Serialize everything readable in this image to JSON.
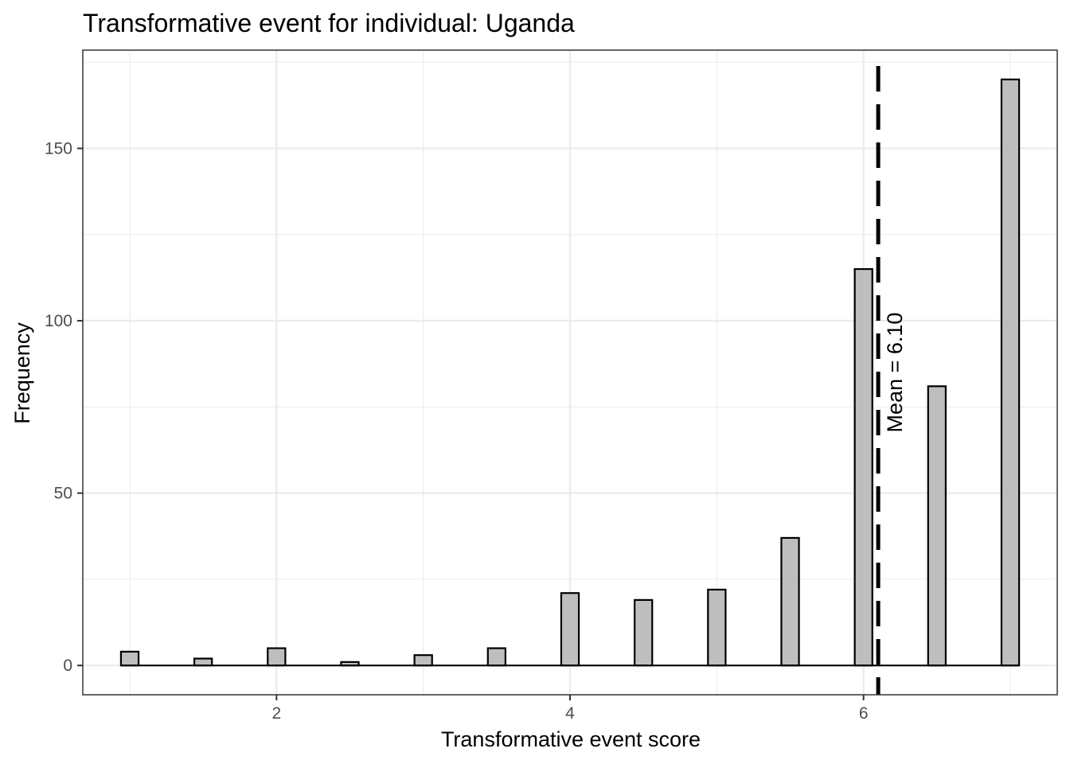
{
  "chart_data": {
    "type": "bar",
    "title": "Transformative event for individual: Uganda",
    "xlabel": "Transformative event score",
    "ylabel": "Frequency",
    "x": [
      1.0,
      1.5,
      2.0,
      2.5,
      3.0,
      3.5,
      4.0,
      4.5,
      5.0,
      5.5,
      6.0,
      6.5,
      7.0
    ],
    "values": [
      4,
      2,
      5,
      1,
      3,
      5,
      21,
      19,
      22,
      37,
      115,
      81,
      170
    ],
    "xlim": [
      0.68,
      7.32
    ],
    "ylim": [
      -8.5,
      178.5
    ],
    "x_ticks": [
      2,
      4,
      6
    ],
    "x_tick_labels": [
      "2",
      "4",
      "6"
    ],
    "y_ticks": [
      0,
      50,
      100,
      150
    ],
    "y_tick_labels": [
      "0",
      "50",
      "100",
      "150"
    ],
    "mean_line": {
      "value": 6.1,
      "label": "Mean = 6.10"
    },
    "grid": true,
    "legend": "none",
    "colors": {
      "bar_fill": "#bebebe",
      "bar_stroke": "#000000",
      "grid": "#ebebeb",
      "mean_line": "#000000",
      "panel_border": "#333333"
    }
  }
}
